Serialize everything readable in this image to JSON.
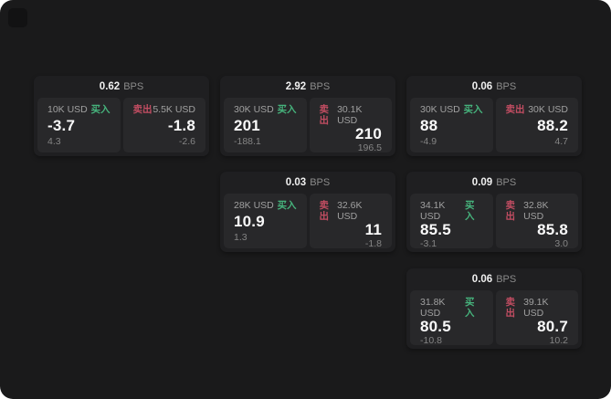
{
  "labels": {
    "bps_unit": "BPS",
    "buy": "买入",
    "sell": "卖出"
  },
  "colors": {
    "buy_green": "#46b37c",
    "sell_red": "#c24d62",
    "card_bg": "#1f1f21",
    "panel_bg": "#28282a",
    "screen_bg": "#1a1a1b"
  },
  "cards": [
    {
      "bps": "0.62",
      "buy": {
        "amount": "10K USD",
        "value": "-3.7",
        "delta": "4.3"
      },
      "sell": {
        "amount": "5.5K USD",
        "value": "-1.8",
        "delta": "-2.6"
      }
    },
    {
      "bps": "2.92",
      "buy": {
        "amount": "30K USD",
        "value": "201",
        "delta": "-188.1"
      },
      "sell": {
        "amount": "30.1K USD",
        "value": "210",
        "delta": "196.5"
      }
    },
    {
      "bps": "0.06",
      "buy": {
        "amount": "30K USD",
        "value": "88",
        "delta": "-4.9"
      },
      "sell": {
        "amount": "30K USD",
        "value": "88.2",
        "delta": "4.7"
      }
    },
    {
      "bps": "0.03",
      "buy": {
        "amount": "28K USD",
        "value": "10.9",
        "delta": "1.3"
      },
      "sell": {
        "amount": "32.6K USD",
        "value": "11",
        "delta": "-1.8"
      }
    },
    {
      "bps": "0.09",
      "buy": {
        "amount": "34.1K USD",
        "value": "85.5",
        "delta": "-3.1"
      },
      "sell": {
        "amount": "32.8K USD",
        "value": "85.8",
        "delta": "3.0"
      }
    },
    {
      "bps": "0.06",
      "buy": {
        "amount": "31.8K USD",
        "value": "80.5",
        "delta": "-10.8"
      },
      "sell": {
        "amount": "39.1K USD",
        "value": "80.7",
        "delta": "10.2"
      }
    }
  ]
}
